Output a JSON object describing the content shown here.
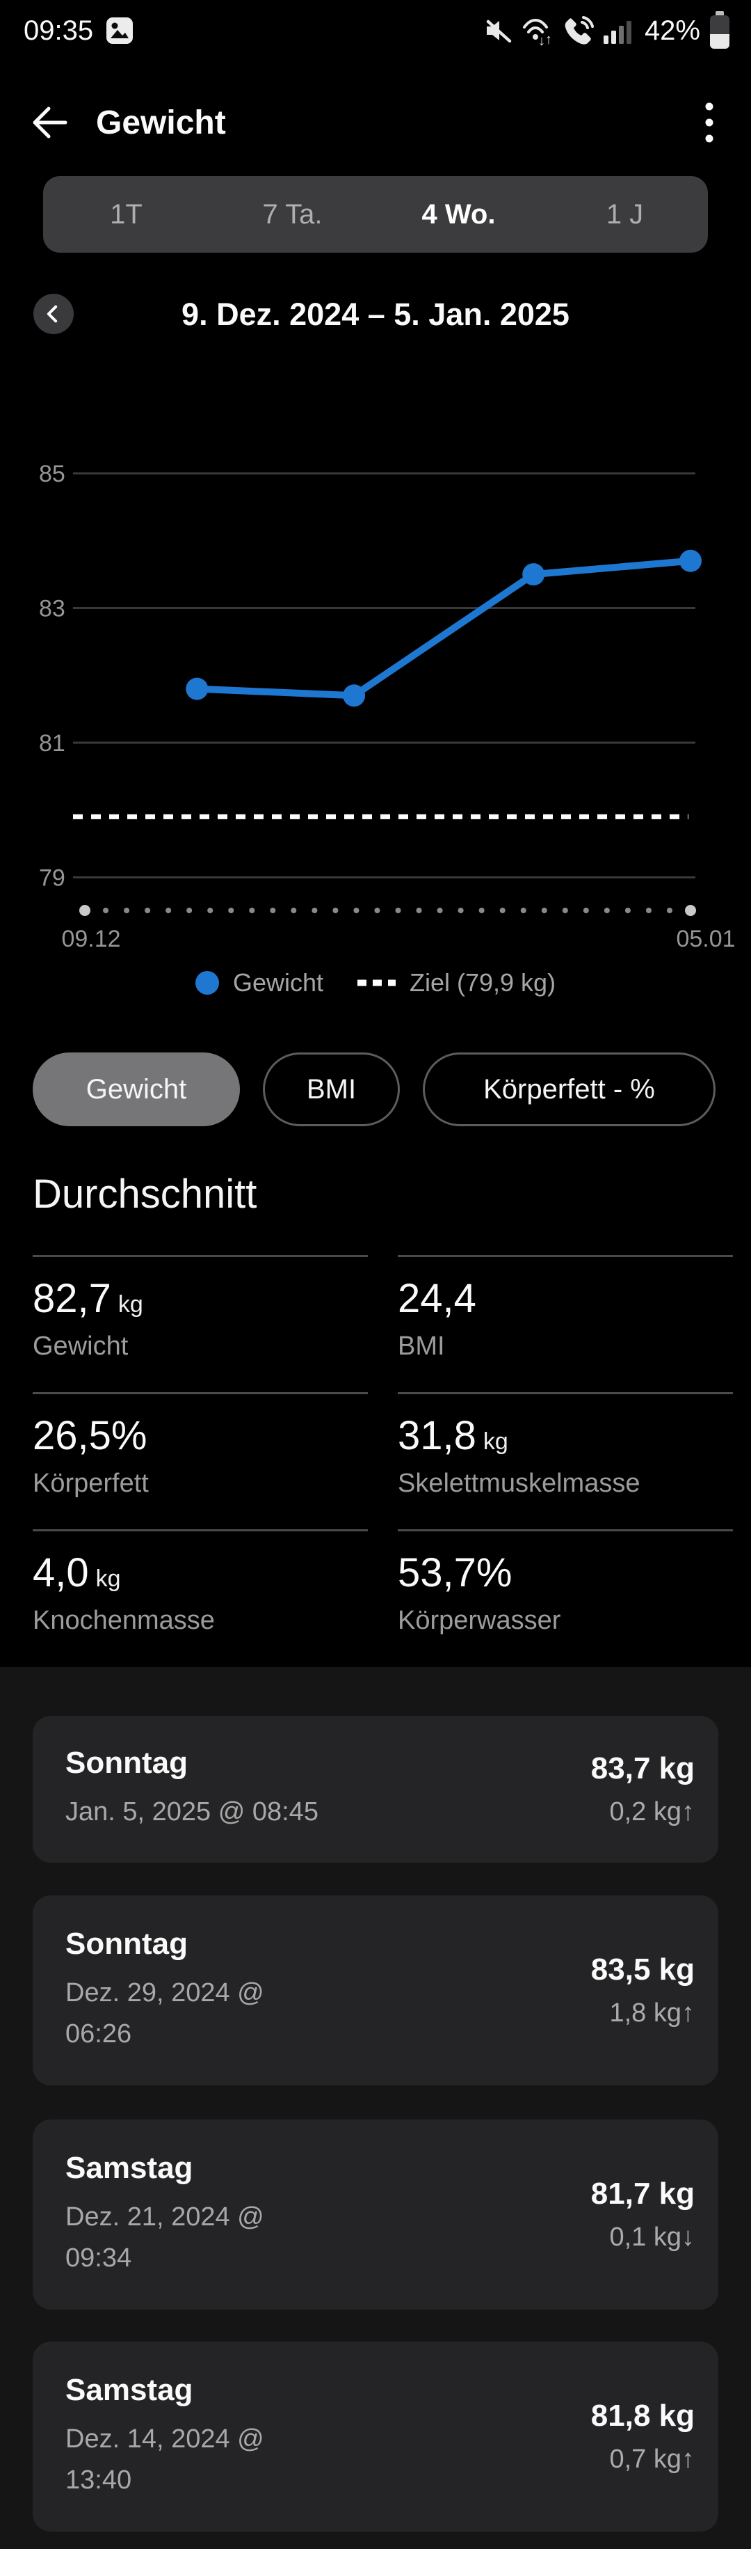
{
  "status_bar": {
    "time": "09:35",
    "battery": "42%",
    "icons": [
      "gallery-notification-icon",
      "mute-icon",
      "wifi-icon",
      "wifi-calling-icon",
      "signal-icon",
      "battery-icon"
    ]
  },
  "header": {
    "title": "Gewicht"
  },
  "tabs": [
    {
      "label": "1T",
      "selected": false
    },
    {
      "label": "7 Ta.",
      "selected": false
    },
    {
      "label": "4 Wo.",
      "selected": true
    },
    {
      "label": "1 J",
      "selected": false
    }
  ],
  "date_nav": {
    "range": "9. Dez. 2024 – 5. Jan. 2025"
  },
  "chart_data": {
    "type": "line",
    "unit": "kg",
    "y_gridlines": [
      85,
      83,
      81,
      79
    ],
    "ylim": [
      78.5,
      86
    ],
    "x_axis": {
      "start_label": "09.12",
      "end_label": "05.01",
      "span_days": 27
    },
    "target": {
      "label": "Ziel (79,9 kg)",
      "value": 79.9
    },
    "series": [
      {
        "name": "Gewicht",
        "color": "#1e78d2",
        "points": [
          {
            "date": "14.12.2024",
            "x_day": 5,
            "value": 81.8
          },
          {
            "date": "21.12.2024",
            "x_day": 12,
            "value": 81.7
          },
          {
            "date": "29.12.2024",
            "x_day": 20,
            "value": 83.5
          },
          {
            "date": "05.01.2025",
            "x_day": 27,
            "value": 83.7
          }
        ]
      }
    ],
    "grid_color": "#3a3a3a",
    "axis_label_color": "#969696",
    "target_line_color": "#ffffff"
  },
  "legend": {
    "series": "Gewicht",
    "target": "Ziel (79,9 kg)"
  },
  "chips": [
    {
      "label": "Gewicht",
      "selected": true
    },
    {
      "label": "BMI",
      "selected": false
    },
    {
      "label": "Körperfett - %",
      "selected": false
    }
  ],
  "average": {
    "title": "Durchschnitt",
    "stats": [
      {
        "value": "82,7",
        "unit": "kg",
        "label": "Gewicht"
      },
      {
        "value": "24,4",
        "unit": "",
        "label": "BMI"
      },
      {
        "value": "26,5%",
        "unit": "",
        "label": "Körperfett"
      },
      {
        "value": "31,8",
        "unit": "kg",
        "label": "Skelettmuskelmasse"
      },
      {
        "value": "4,0",
        "unit": "kg",
        "label": "Knochenmasse"
      },
      {
        "value": "53,7%",
        "unit": "",
        "label": "Körperwasser"
      }
    ]
  },
  "measurements": [
    {
      "day": "Sonntag",
      "date_lines": [
        "Jan. 5, 2025 @ 08:45"
      ],
      "weight": "83,7 kg",
      "delta": "0,2 kg↑"
    },
    {
      "day": "Sonntag",
      "date_lines": [
        "Dez. 29, 2024 @",
        "06:26"
      ],
      "weight": "83,5 kg",
      "delta": "1,8 kg↑"
    },
    {
      "day": "Samstag",
      "date_lines": [
        "Dez. 21, 2024 @",
        "09:34"
      ],
      "weight": "81,7 kg",
      "delta": "0,1 kg↓"
    },
    {
      "day": "Samstag",
      "date_lines": [
        "Dez. 14, 2024 @",
        "13:40"
      ],
      "weight": "81,8 kg",
      "delta": "0,7 kg↑"
    }
  ]
}
